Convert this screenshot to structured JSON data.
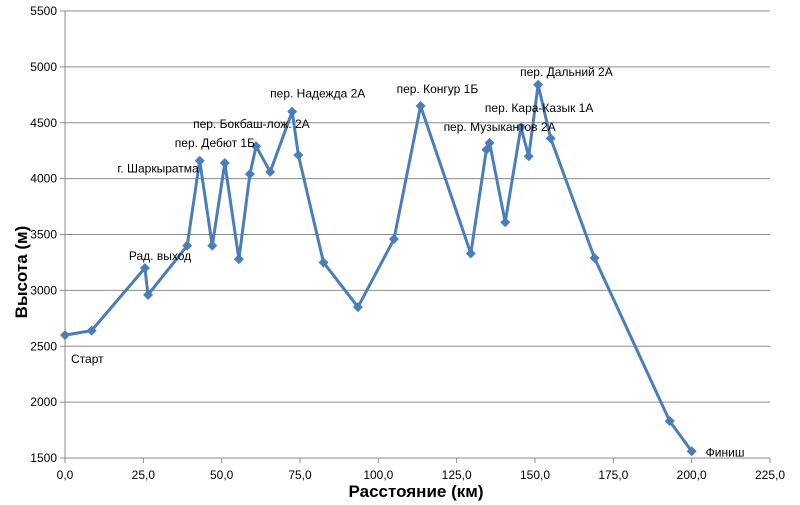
{
  "chart_data": {
    "type": "line",
    "title": "",
    "xlabel": "Расстояние (км)",
    "ylabel": "Высота (м)",
    "xlim": [
      0,
      225
    ],
    "ylim": [
      1500,
      5500
    ],
    "x_ticks": [
      0,
      25,
      50,
      75,
      100,
      125,
      150,
      175,
      200,
      225
    ],
    "x_tick_labels": [
      "0,0",
      "25,0",
      "50,0",
      "75,0",
      "100,0",
      "125,0",
      "150,0",
      "175,0",
      "200,0",
      "225,0"
    ],
    "y_ticks": [
      1500,
      2000,
      2500,
      3000,
      3500,
      4000,
      4500,
      5000,
      5500
    ],
    "y_tick_labels": [
      "1500",
      "2000",
      "2500",
      "3000",
      "3500",
      "4000",
      "4500",
      "5000",
      "5500"
    ],
    "grid": "horizontal",
    "legend": "none",
    "colors": {
      "series": "#4a7ebb",
      "grid": "#8c8c8c",
      "axis": "#8c8c8c"
    },
    "series": [
      {
        "x": [
          0,
          8.5,
          25.5,
          26.5,
          39,
          43,
          47,
          51,
          55.5,
          59,
          61,
          65.5,
          72.5,
          74.5,
          82.5,
          93.5,
          105,
          113.5,
          129.5,
          134.5,
          135.5,
          140.5,
          145.5,
          148,
          151,
          155,
          169,
          193,
          200
        ],
        "y": [
          2600,
          2640,
          3200,
          2960,
          3400,
          4160,
          3400,
          4140,
          3280,
          4040,
          4290,
          4060,
          4600,
          4210,
          3250,
          2850,
          3460,
          4650,
          3330,
          4260,
          4320,
          3610,
          4460,
          4200,
          4840,
          4360,
          3290,
          1830,
          1560
        ]
      }
    ],
    "annotations": [
      {
        "text": "Старт",
        "x": 0,
        "y": 2600
      },
      {
        "text": "Рад. выход",
        "x": 25.5,
        "y": 3200
      },
      {
        "text": "г. Шаркыратма",
        "x": 43,
        "y": 4160
      },
      {
        "text": "пер. Дебют 1Б",
        "x": 51,
        "y": 4140
      },
      {
        "text": "пер. Бокбаш-лож. 2А",
        "x": 61,
        "y": 4290
      },
      {
        "text": "пер. Надежда 2А",
        "x": 72.5,
        "y": 4600
      },
      {
        "text": "пер. Конгур 1Б",
        "x": 113.5,
        "y": 4650
      },
      {
        "text": "пер. Музыкантов 2А",
        "x": 135.5,
        "y": 4320
      },
      {
        "text": "пер. Кара-Казык 1А",
        "x": 145.5,
        "y": 4460
      },
      {
        "text": "пер. Дальний 2А",
        "x": 151,
        "y": 4840
      },
      {
        "text": "Финиш",
        "x": 200,
        "y": 1560
      }
    ]
  }
}
